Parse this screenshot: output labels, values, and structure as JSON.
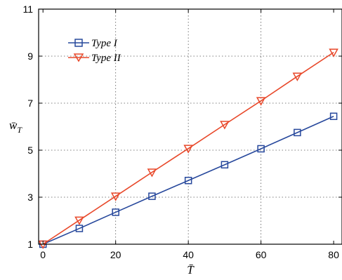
{
  "chart_data": {
    "type": "line",
    "xlabel": "T̄",
    "ylabel_base": "w̄",
    "ylabel_sub": "T",
    "xlim": [
      0,
      80
    ],
    "ylim": [
      1,
      11
    ],
    "xticks": [
      0,
      20,
      40,
      60,
      80
    ],
    "yticks": [
      1,
      3,
      5,
      7,
      9,
      11
    ],
    "grid": true,
    "legend_position": "top-left",
    "series": [
      {
        "name": "Type I",
        "color": "#27489c",
        "marker": "square",
        "x": [
          0,
          10,
          20,
          30,
          40,
          50,
          60,
          70,
          80
        ],
        "y": [
          1.0,
          1.67,
          2.36,
          3.04,
          3.71,
          4.38,
          5.06,
          5.75,
          6.44
        ]
      },
      {
        "name": "Type II",
        "color": "#e8482a",
        "marker": "triangle-down",
        "x": [
          0,
          10,
          20,
          30,
          40,
          50,
          60,
          70,
          80
        ],
        "y": [
          1.0,
          2.02,
          3.04,
          4.06,
          5.07,
          6.09,
          7.1,
          8.14,
          9.16
        ]
      }
    ]
  }
}
